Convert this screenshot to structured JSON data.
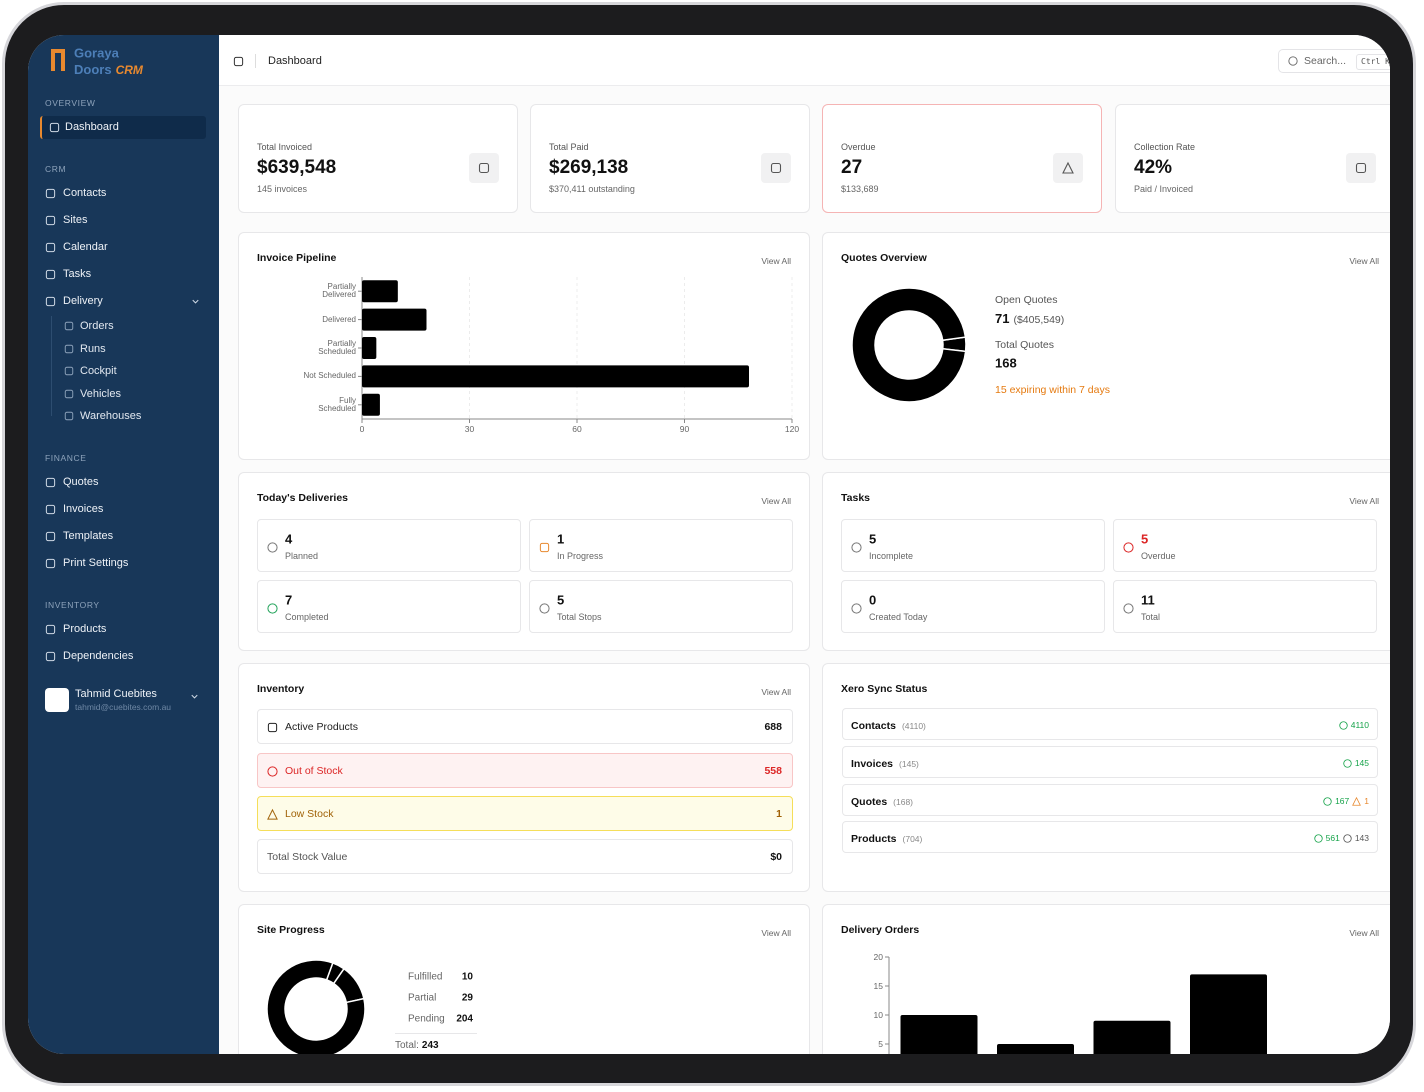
{
  "sidebar": {
    "brand": {
      "name1": "Goraya",
      "name2": "Doors",
      "name3": "CRM"
    },
    "sections": [
      {
        "title": "OVERVIEW",
        "items": [
          {
            "label": "Dashboard"
          }
        ]
      },
      {
        "title": "CRM",
        "items": [
          {
            "label": "Contacts"
          },
          {
            "label": "Sites"
          },
          {
            "label": "Calendar"
          },
          {
            "label": "Tasks"
          },
          {
            "label": "Delivery",
            "children": [
              {
                "label": "Orders"
              },
              {
                "label": "Runs"
              },
              {
                "label": "Cockpit"
              },
              {
                "label": "Vehicles"
              },
              {
                "label": "Warehouses"
              }
            ]
          }
        ]
      },
      {
        "title": "FINANCE",
        "items": [
          {
            "label": "Quotes"
          },
          {
            "label": "Invoices"
          },
          {
            "label": "Templates"
          },
          {
            "label": "Print Settings"
          }
        ]
      },
      {
        "title": "INVENTORY",
        "items": [
          {
            "label": "Products"
          },
          {
            "label": "Dependencies"
          }
        ]
      }
    ],
    "user": {
      "name": "Tahmid Cuebites",
      "email": "tahmid@cuebites.com.au"
    }
  },
  "header": {
    "title": "Dashboard",
    "search": "Search...",
    "shortcut": "Ctrl K"
  },
  "stats": [
    {
      "label": "Total Invoiced",
      "value": "$639,548",
      "sub": "145 invoices"
    },
    {
      "label": "Total Paid",
      "value": "$269,138",
      "sub": "$370,411 outstanding"
    },
    {
      "label": "Overdue",
      "value": "27",
      "sub": "$133,689"
    },
    {
      "label": "Collection Rate",
      "value": "42%",
      "sub": "Paid / Invoiced"
    }
  ],
  "invoice_pipeline": {
    "title": "Invoice Pipeline",
    "link": "View All",
    "chart_data": {
      "type": "bar",
      "orientation": "horizontal",
      "categories": [
        "Partially Delivered",
        "Delivered",
        "Partially Scheduled",
        "Not Scheduled",
        "Fully Scheduled"
      ],
      "values": [
        10,
        18,
        4,
        108,
        5
      ],
      "color": "#000000",
      "xlim": [
        0,
        120
      ],
      "xticks": [
        0,
        30,
        60,
        90,
        120
      ],
      "grid": true
    }
  },
  "quotes_overview": {
    "title": "Quotes Overview",
    "link": "View All",
    "chart_data": {
      "type": "pie",
      "donut": true,
      "values": [
        4,
        96
      ],
      "color": "#000000"
    },
    "open_label": "Open Quotes",
    "open_value": "71",
    "open_amount": "($405,549)",
    "total_label": "Total Quotes",
    "total_value": "168",
    "note": "15 expiring within 7 days"
  },
  "todays_deliveries": {
    "title": "Today's Deliveries",
    "link": "View All",
    "tiles": [
      {
        "value": "4",
        "label": "Planned"
      },
      {
        "value": "1",
        "label": "In Progress"
      },
      {
        "value": "7",
        "label": "Completed"
      },
      {
        "value": "5",
        "label": "Total Stops"
      }
    ]
  },
  "tasks": {
    "title": "Tasks",
    "link": "View All",
    "tiles": [
      {
        "value": "5",
        "label": "Incomplete"
      },
      {
        "value": "5",
        "label": "Overdue"
      },
      {
        "value": "0",
        "label": "Created Today"
      },
      {
        "value": "11",
        "label": "Total"
      }
    ]
  },
  "inventory": {
    "title": "Inventory",
    "link": "View All",
    "rows": [
      {
        "label": "Active Products",
        "value": "688"
      },
      {
        "label": "Out of Stock",
        "value": "558"
      },
      {
        "label": "Low Stock",
        "value": "1"
      },
      {
        "label": "Total Stock Value",
        "value": "$0"
      }
    ]
  },
  "xero_sync": {
    "title": "Xero Sync Status",
    "rows": [
      {
        "name": "Contacts",
        "count": "(4110)",
        "synced": "4110"
      },
      {
        "name": "Invoices",
        "count": "(145)",
        "synced": "145"
      },
      {
        "name": "Quotes",
        "count": "(168)",
        "synced": "167",
        "warning": "1"
      },
      {
        "name": "Products",
        "count": "(704)",
        "synced": "561",
        "pending": "143"
      }
    ]
  },
  "site_progress": {
    "title": "Site Progress",
    "link": "View All",
    "chart_data": {
      "type": "pie",
      "donut": true,
      "categories": [
        "Fulfilled",
        "Partial",
        "Pending"
      ],
      "values": [
        10,
        29,
        204
      ],
      "color": "#000000"
    },
    "total_label": "Total:",
    "total": "243"
  },
  "delivery_orders": {
    "title": "Delivery Orders",
    "link": "View All",
    "chart_data": {
      "type": "bar",
      "categories": [
        null,
        null,
        null,
        null
      ],
      "values": [
        10,
        5,
        9,
        17
      ],
      "color": "#000000",
      "ylim": [
        0,
        20
      ],
      "yticks": [
        5,
        10,
        15,
        20
      ],
      "grid": false
    }
  }
}
